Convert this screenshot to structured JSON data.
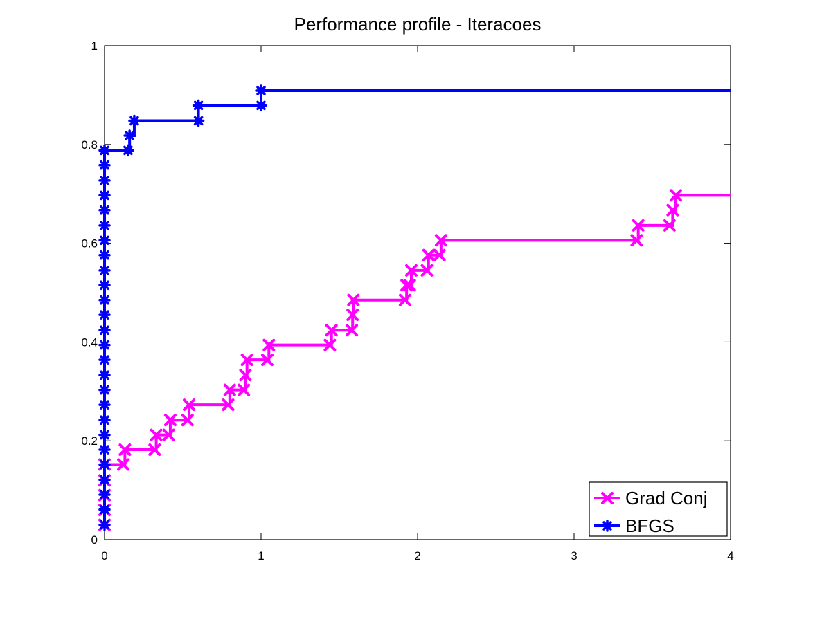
{
  "chart_data": {
    "type": "line",
    "title": "Performance profile - Iteracoes",
    "xlabel": "",
    "ylabel": "",
    "xlim": [
      0,
      4
    ],
    "ylim": [
      0,
      1
    ],
    "x_ticks": [
      0,
      1,
      2,
      3,
      4
    ],
    "y_ticks": [
      0,
      0.2,
      0.4,
      0.6,
      0.8,
      1
    ],
    "x_tick_labels": [
      "0",
      "1",
      "2",
      "3",
      "4"
    ],
    "y_tick_labels": [
      "0",
      "0.2",
      "0.4",
      "0.6",
      "0.8",
      "1"
    ],
    "grid": false,
    "legend_position": "bottom-right",
    "series": [
      {
        "name": "Grad Conj",
        "color": "#ff00ff",
        "marker": "x",
        "line": "stair",
        "x": [
          0,
          0,
          0,
          0,
          0,
          0.12,
          0.13,
          0.32,
          0.33,
          0.41,
          0.42,
          0.53,
          0.54,
          0.79,
          0.8,
          0.89,
          0.9,
          0.91,
          1.04,
          1.05,
          1.44,
          1.45,
          1.58,
          1.585,
          1.59,
          1.92,
          1.93,
          1.95,
          1.96,
          2.06,
          2.07,
          2.14,
          2.15,
          3.4,
          3.41,
          3.61,
          3.63,
          3.65,
          4.0
        ],
        "y": [
          0.03,
          0.06,
          0.09,
          0.12,
          0.152,
          0.152,
          0.182,
          0.182,
          0.212,
          0.212,
          0.242,
          0.242,
          0.273,
          0.273,
          0.303,
          0.303,
          0.333,
          0.364,
          0.364,
          0.394,
          0.394,
          0.424,
          0.424,
          0.455,
          0.485,
          0.485,
          0.515,
          0.515,
          0.545,
          0.545,
          0.576,
          0.576,
          0.606,
          0.606,
          0.636,
          0.636,
          0.667,
          0.697,
          0.697
        ]
      },
      {
        "name": "BFGS",
        "color": "#0000ff",
        "marker": "asterisk",
        "line": "stair",
        "x": [
          0,
          0,
          0,
          0,
          0,
          0,
          0,
          0,
          0,
          0,
          0,
          0,
          0,
          0,
          0,
          0,
          0,
          0,
          0,
          0,
          0,
          0,
          0,
          0,
          0,
          0,
          0.15,
          0.16,
          0.19,
          0.6,
          0.6,
          1.0,
          1.0,
          4.0
        ],
        "y": [
          0.03,
          0.061,
          0.091,
          0.121,
          0.152,
          0.182,
          0.212,
          0.242,
          0.273,
          0.303,
          0.333,
          0.364,
          0.394,
          0.424,
          0.455,
          0.485,
          0.515,
          0.545,
          0.576,
          0.606,
          0.636,
          0.667,
          0.697,
          0.727,
          0.758,
          0.788,
          0.788,
          0.818,
          0.848,
          0.848,
          0.879,
          0.879,
          0.909,
          0.909
        ]
      }
    ]
  }
}
